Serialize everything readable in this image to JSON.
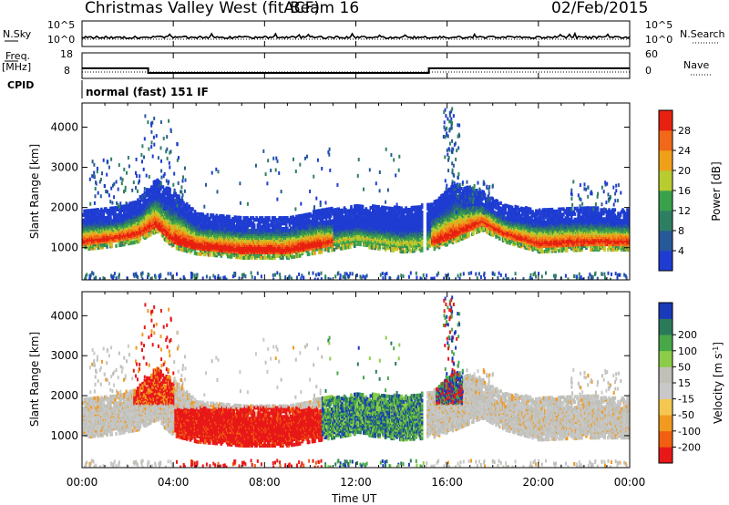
{
  "header": {
    "station": "Christmas Valley West (fitACF)",
    "beam": "Beam 16",
    "date": "02/Feb/2015"
  },
  "sky_panel": {
    "left_label": "N.Sky",
    "right_label": "N.Search",
    "tick_top": "10^5",
    "tick_bottom": "10^0"
  },
  "freq_panel": {
    "left_label_line1": "Freq.",
    "left_label_line2": "[MHz]",
    "right_label": "Nave",
    "left_ticks": [
      "18",
      "8"
    ],
    "right_ticks": [
      "60",
      "0"
    ],
    "freq_steps": [
      {
        "from": 0,
        "to": 2.9,
        "mhz": 11.6
      },
      {
        "from": 2.9,
        "to": 15.2,
        "mhz": 9.6
      },
      {
        "from": 15.2,
        "to": 24,
        "mhz": 11.6
      }
    ],
    "nave_level": 15
  },
  "cpid": {
    "label": "CPID",
    "mode": "normal (fast) 151 IF"
  },
  "colors": {
    "power": [
      "#1e3cd2",
      "#27599a",
      "#2e7f62",
      "#3aa04c",
      "#b8cc30",
      "#f0a018",
      "#f06818",
      "#e82010"
    ],
    "velocity": [
      "#e81818",
      "#f06010",
      "#f09a20",
      "#f4c850",
      "#c8c8c8",
      "#c0c0b8",
      "#8ccc48",
      "#48a848",
      "#2a7a5a",
      "#1a3aba"
    ]
  },
  "chart_data": [
    {
      "type": "heatmap",
      "name": "power",
      "ylabel": "Slant Range [km]",
      "yticks": [
        1000,
        2000,
        3000,
        4000
      ],
      "ylim": [
        200,
        4600
      ],
      "xlim": [
        0,
        24
      ],
      "colorbar_label": "Power [dB]",
      "colorbar_ticks": [
        "4",
        "8",
        "12",
        "16",
        "20",
        "24",
        "28"
      ],
      "clim": [
        0,
        32
      ]
    },
    {
      "type": "heatmap",
      "name": "velocity",
      "ylabel": "Slant Range [km]",
      "yticks": [
        1000,
        2000,
        3000,
        4000
      ],
      "ylim": [
        200,
        4600
      ],
      "xlim": [
        0,
        24
      ],
      "colorbar_label": "Velocity [m s",
      "colorbar_label_sup": "-1",
      "colorbar_label_end": "]",
      "colorbar_ticks": [
        "-200",
        "-100",
        "-50",
        "-15",
        "15",
        "50",
        "100",
        "200"
      ]
    }
  ],
  "xaxis": {
    "label": "Time UT",
    "ticks": [
      "00:00",
      "04:00",
      "08:00",
      "12:00",
      "16:00",
      "20:00",
      "00:00"
    ]
  }
}
